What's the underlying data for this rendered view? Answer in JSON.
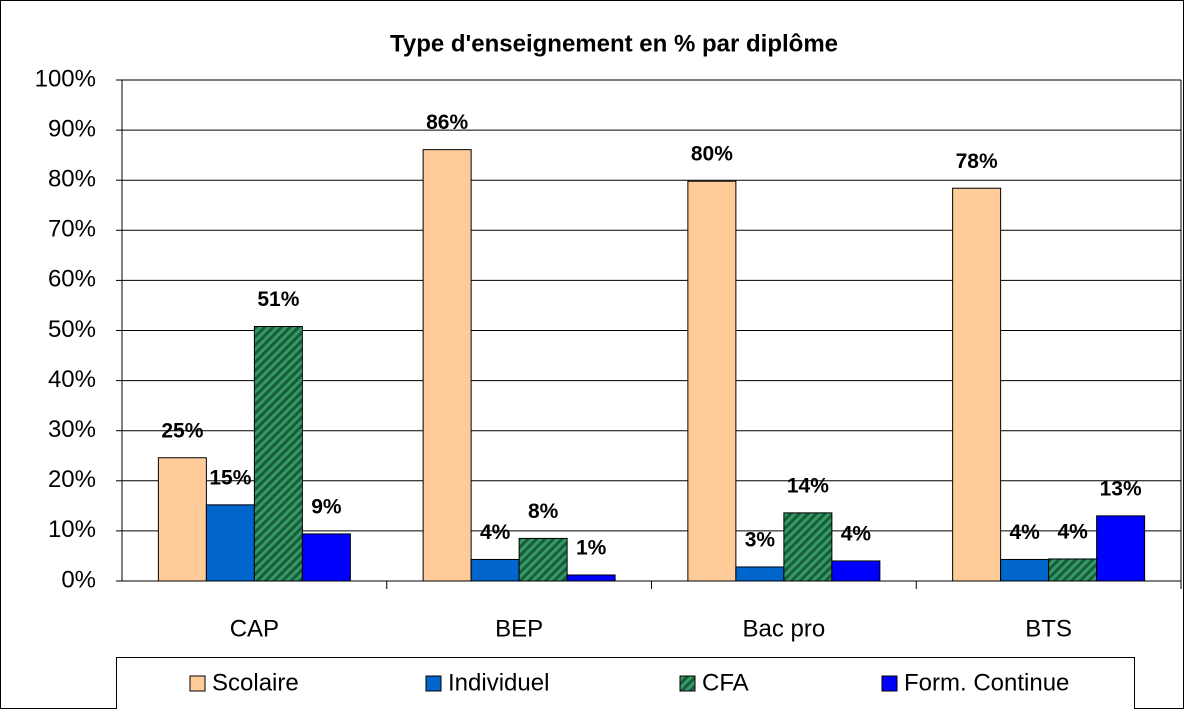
{
  "chart_data": {
    "type": "bar",
    "title": "Type d'enseignement en %  par diplôme",
    "categories": [
      "CAP",
      "BEP",
      "Bac pro",
      "BTS"
    ],
    "series": [
      {
        "name": "Scolaire",
        "color": "#ffcc99",
        "values": [
          24.6,
          86.1,
          79.8,
          78.4
        ],
        "value_labels": [
          "25%",
          "86%",
          "80%",
          "78%"
        ]
      },
      {
        "name": "Individuel",
        "color": "#0066cc",
        "values": [
          15.2,
          4.3,
          2.8,
          4.3
        ],
        "value_labels": [
          "15%",
          "4%",
          "3%",
          "4%"
        ]
      },
      {
        "name": "CFA",
        "color": "#339966",
        "pattern": "diagonal",
        "values": [
          50.8,
          8.5,
          13.6,
          4.4
        ],
        "value_labels": [
          "51%",
          "8%",
          "14%",
          "4%"
        ]
      },
      {
        "name": "Form. Continue",
        "color": "#0000ff",
        "values": [
          9.4,
          1.2,
          4.0,
          13.0
        ],
        "value_labels": [
          "9%",
          "1%",
          "4%",
          "13%"
        ]
      }
    ],
    "ylim": [
      0,
      100
    ],
    "yticks": [
      {
        "value": 0,
        "label": "0%"
      },
      {
        "value": 10,
        "label": "10%"
      },
      {
        "value": 20,
        "label": "20%"
      },
      {
        "value": 30,
        "label": "30%"
      },
      {
        "value": 40,
        "label": "40%"
      },
      {
        "value": 50,
        "label": "50%"
      },
      {
        "value": 60,
        "label": "60%"
      },
      {
        "value": 70,
        "label": "70%"
      },
      {
        "value": 80,
        "label": "80%"
      },
      {
        "value": 90,
        "label": "90%"
      },
      {
        "value": 100,
        "label": "100%"
      }
    ],
    "grid": true,
    "legend": "bottom"
  }
}
